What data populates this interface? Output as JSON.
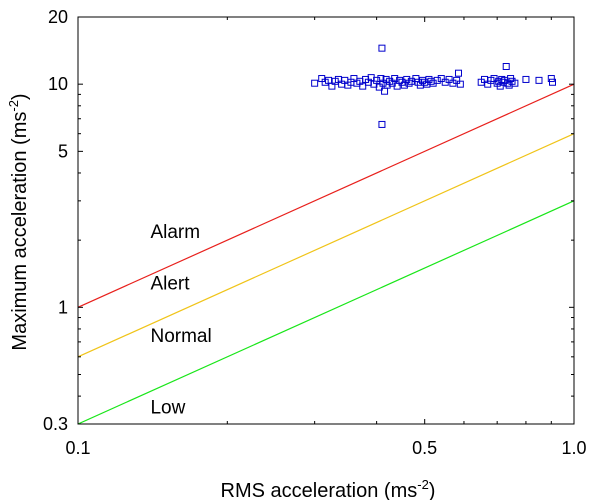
{
  "chart_data": {
    "type": "scatter",
    "xscale": "log",
    "yscale": "log",
    "xlim": [
      0.1,
      1.0
    ],
    "ylim": [
      0.3,
      20
    ],
    "xlabel": "RMS acceleration (ms",
    "xlabel_sup": "-2",
    "xlabel_end": ")",
    "ylabel": "Maximum acceleration (ms",
    "ylabel_sup": "-2",
    "ylabel_end": ")",
    "x_ticks": [
      {
        "value": 0.1,
        "label": "0.1"
      },
      {
        "value": 0.5,
        "label": "0.5"
      },
      {
        "value": 1.0,
        "label": "1.0"
      }
    ],
    "y_ticks": [
      {
        "value": 0.3,
        "label": "0.3"
      },
      {
        "value": 1,
        "label": "1"
      },
      {
        "value": 5,
        "label": "5"
      },
      {
        "value": 10,
        "label": "10"
      },
      {
        "value": 20,
        "label": "20"
      }
    ],
    "lines": [
      {
        "label": "Alarm",
        "color": "#e8201c",
        "x": [
          0.1,
          1.0
        ],
        "y": [
          1.0,
          10.0
        ],
        "label_at": [
          0.14,
          2.05
        ]
      },
      {
        "label": "Alert",
        "color": "#f0c419",
        "x": [
          0.1,
          1.0
        ],
        "y": [
          0.6,
          6.0
        ],
        "label_at": [
          0.14,
          1.2
        ]
      },
      {
        "label": "Normal",
        "color": "#19e619",
        "x": [
          0.1,
          1.0
        ],
        "y": [
          0.3,
          3.0
        ],
        "label_at": [
          0.14,
          0.7
        ]
      },
      {
        "label": "Low",
        "color": "#19e619",
        "x": [
          0.1,
          1.0
        ],
        "y": [
          0.3,
          3.0
        ],
        "label_at": [
          0.14,
          0.335
        ],
        "line": false
      }
    ],
    "series": [
      {
        "marker": "square",
        "color": "#0000cc",
        "points": [
          [
            0.3,
            10.1
          ],
          [
            0.31,
            10.6
          ],
          [
            0.315,
            10.2
          ],
          [
            0.32,
            10.4
          ],
          [
            0.325,
            9.8
          ],
          [
            0.33,
            10.3
          ],
          [
            0.335,
            10.5
          ],
          [
            0.34,
            10.0
          ],
          [
            0.345,
            10.4
          ],
          [
            0.35,
            9.9
          ],
          [
            0.355,
            10.2
          ],
          [
            0.36,
            10.6
          ],
          [
            0.365,
            10.1
          ],
          [
            0.37,
            10.3
          ],
          [
            0.375,
            9.8
          ],
          [
            0.38,
            10.5
          ],
          [
            0.385,
            10.2
          ],
          [
            0.39,
            10.7
          ],
          [
            0.395,
            10.0
          ],
          [
            0.4,
            10.4
          ],
          [
            0.405,
            9.7
          ],
          [
            0.408,
            10.6
          ],
          [
            0.41,
            14.5
          ],
          [
            0.41,
            6.6
          ],
          [
            0.412,
            10.1
          ],
          [
            0.415,
            9.3
          ],
          [
            0.418,
            10.5
          ],
          [
            0.42,
            9.9
          ],
          [
            0.425,
            10.3
          ],
          [
            0.43,
            10.1
          ],
          [
            0.435,
            10.6
          ],
          [
            0.44,
            9.8
          ],
          [
            0.445,
            10.4
          ],
          [
            0.45,
            10.2
          ],
          [
            0.455,
            9.9
          ],
          [
            0.46,
            10.5
          ],
          [
            0.465,
            10.1
          ],
          [
            0.47,
            10.3
          ],
          [
            0.48,
            10.6
          ],
          [
            0.485,
            10.2
          ],
          [
            0.49,
            9.9
          ],
          [
            0.495,
            10.4
          ],
          [
            0.5,
            10.2
          ],
          [
            0.505,
            10.0
          ],
          [
            0.51,
            10.5
          ],
          [
            0.515,
            10.3
          ],
          [
            0.52,
            10.1
          ],
          [
            0.53,
            10.4
          ],
          [
            0.54,
            10.6
          ],
          [
            0.55,
            10.2
          ],
          [
            0.56,
            10.5
          ],
          [
            0.57,
            10.1
          ],
          [
            0.58,
            10.4
          ],
          [
            0.585,
            11.2
          ],
          [
            0.59,
            10.0
          ],
          [
            0.65,
            10.2
          ],
          [
            0.66,
            10.5
          ],
          [
            0.67,
            10.0
          ],
          [
            0.68,
            10.4
          ],
          [
            0.69,
            10.6
          ],
          [
            0.7,
            10.1
          ],
          [
            0.705,
            10.3
          ],
          [
            0.71,
            9.8
          ],
          [
            0.715,
            10.5
          ],
          [
            0.72,
            10.2
          ],
          [
            0.725,
            10.4
          ],
          [
            0.73,
            12.0
          ],
          [
            0.735,
            10.1
          ],
          [
            0.74,
            9.9
          ],
          [
            0.745,
            10.6
          ],
          [
            0.75,
            10.3
          ],
          [
            0.76,
            10.1
          ],
          [
            0.8,
            10.5
          ],
          [
            0.85,
            10.4
          ],
          [
            0.9,
            10.6
          ],
          [
            0.905,
            10.2
          ]
        ]
      }
    ]
  }
}
